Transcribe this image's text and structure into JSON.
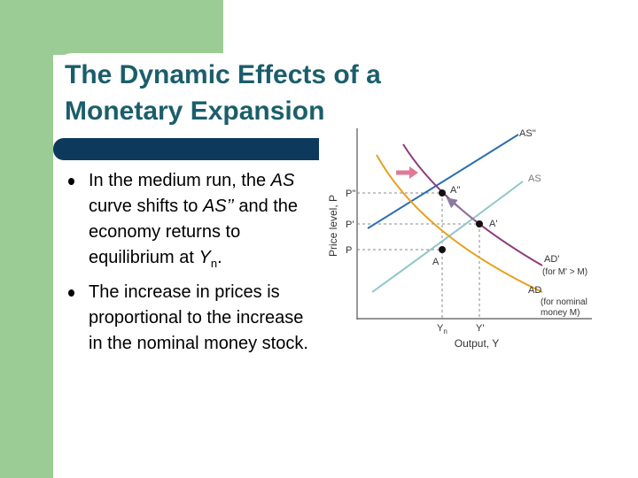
{
  "slide": {
    "title": "The Dynamic Effects of a Monetary Expansion",
    "bullets": [
      [
        "In the medium run, the ",
        "AS",
        " curve shifts to ",
        "AS’’",
        " and the economy returns to equilibrium at ",
        "Y",
        "n",
        "."
      ],
      [
        "The increase in prices is proportional to the increase in the nominal money stock."
      ]
    ],
    "diagram": {
      "y_axis_label": "Price level, P",
      "x_axis_label": "Output, Y",
      "price_labels": [
        "P''",
        "P'",
        "P"
      ],
      "output_labels": [
        "Y",
        "n",
        "Y'"
      ],
      "curve_labels": [
        "AS''",
        "AS",
        "AD'",
        "(for M' > M)",
        "AD",
        "(for nominal",
        "money M)"
      ],
      "point_labels": [
        "A''",
        "A'",
        "A"
      ]
    }
  }
}
